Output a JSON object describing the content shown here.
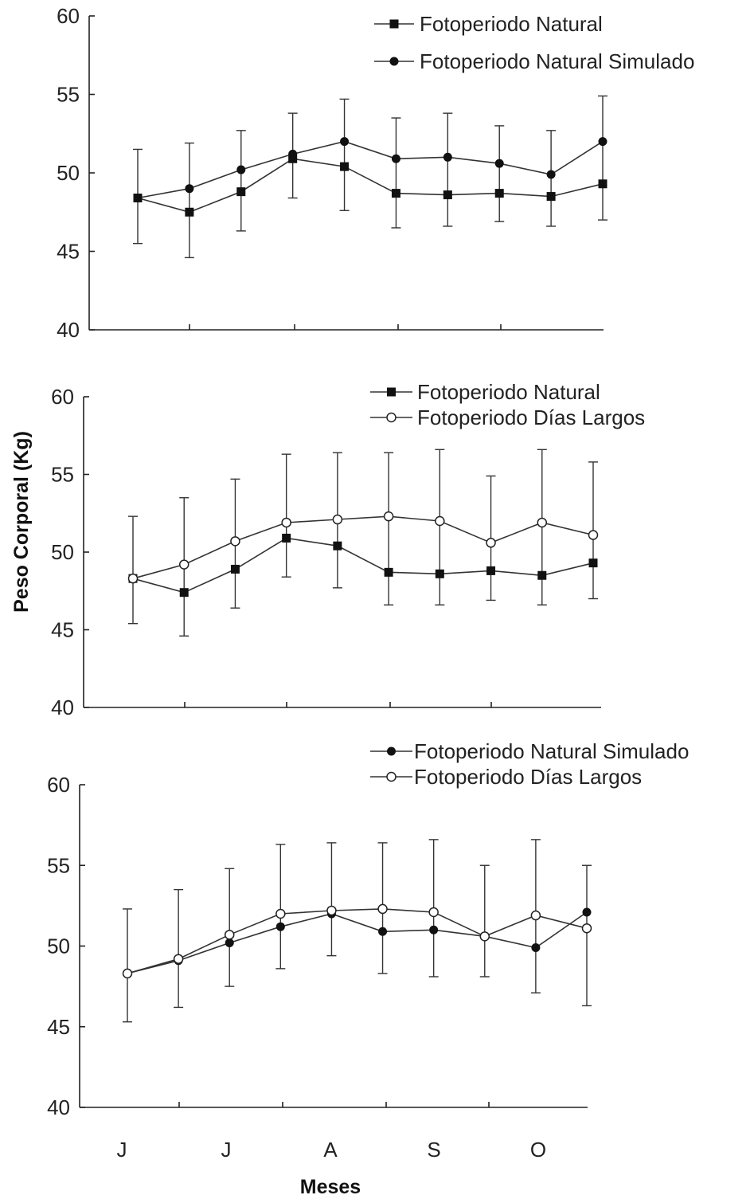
{
  "y_axis_label": "Peso Corporal (Kg)",
  "x_axis_label": "Meses",
  "month_labels": [
    "J",
    "J",
    "A",
    "S",
    "O"
  ],
  "chart_data": [
    {
      "type": "line",
      "ylim": [
        40,
        60
      ],
      "yticks": [
        "40",
        "45",
        "50",
        "55",
        "60"
      ],
      "legend_position": "top-right",
      "series": [
        {
          "name": "Fotoperiodo Natural",
          "marker": "filled-square",
          "values": [
            48.4,
            47.5,
            48.8,
            50.9,
            50.4,
            48.7,
            48.6,
            48.7,
            48.5,
            49.3
          ],
          "error_up": [
            51.5,
            51.9,
            52.7,
            53.8,
            54.7,
            53.5,
            53.8,
            53.0,
            52.7,
            54.9
          ],
          "error_down": [
            45.5,
            44.6,
            46.3,
            48.4,
            47.6,
            46.5,
            46.6,
            46.9,
            46.6,
            47.0
          ]
        },
        {
          "name": "Fotoperiodo Natural Simulado",
          "marker": "filled-circle",
          "values": [
            48.4,
            49.0,
            50.2,
            51.2,
            52.0,
            50.9,
            51.0,
            50.6,
            49.9,
            52.0
          ],
          "error_up": [
            51.5,
            51.9,
            52.7,
            53.8,
            54.7,
            53.5,
            53.8,
            53.0,
            52.7,
            54.9
          ],
          "error_down": [
            45.5,
            44.6,
            46.3,
            48.4,
            47.6,
            46.5,
            46.6,
            46.9,
            46.6,
            47.0
          ]
        }
      ]
    },
    {
      "type": "line",
      "ylim": [
        40,
        60
      ],
      "yticks": [
        "40",
        "45",
        "50",
        "55",
        "60"
      ],
      "legend_position": "top-right",
      "series": [
        {
          "name": "Fotoperiodo Natural",
          "marker": "filled-square",
          "values": [
            48.3,
            47.4,
            48.9,
            50.9,
            50.4,
            48.7,
            48.6,
            48.8,
            48.5,
            49.3
          ],
          "error_up": [
            52.3,
            53.5,
            54.7,
            56.3,
            56.4,
            56.4,
            56.6,
            54.9,
            56.6,
            55.8
          ],
          "error_down": [
            45.4,
            44.6,
            46.4,
            48.4,
            47.7,
            46.6,
            46.6,
            46.9,
            46.6,
            47.0
          ]
        },
        {
          "name": "Fotoperiodo Días Largos",
          "marker": "open-circle",
          "values": [
            48.3,
            49.2,
            50.7,
            51.9,
            52.1,
            52.3,
            52.0,
            50.6,
            51.9,
            51.1
          ],
          "error_up": [
            52.3,
            53.5,
            54.7,
            56.3,
            56.4,
            56.4,
            56.6,
            54.9,
            56.6,
            55.8
          ],
          "error_down": [
            45.4,
            44.6,
            46.4,
            48.4,
            47.7,
            46.6,
            46.6,
            46.9,
            46.6,
            47.0
          ]
        }
      ]
    },
    {
      "type": "line",
      "ylim": [
        40,
        60
      ],
      "yticks": [
        "40",
        "45",
        "50",
        "55",
        "60"
      ],
      "legend_position": "top-right",
      "series": [
        {
          "name": "Fotoperiodo Natural Simulado",
          "marker": "filled-circle",
          "values": [
            48.3,
            49.1,
            50.2,
            51.2,
            52.0,
            50.9,
            51.0,
            50.6,
            49.9,
            52.1
          ],
          "error_up": [
            52.3,
            53.5,
            54.8,
            56.3,
            56.4,
            56.4,
            56.6,
            55.0,
            56.6,
            55.0
          ],
          "error_down": [
            45.3,
            46.2,
            47.5,
            48.6,
            49.4,
            48.3,
            48.1,
            48.1,
            47.1,
            46.3
          ]
        },
        {
          "name": "Fotoperiodo Días Largos",
          "marker": "open-circle",
          "values": [
            48.3,
            49.2,
            50.7,
            52.0,
            52.2,
            52.3,
            52.1,
            50.6,
            51.9,
            51.1
          ],
          "error_up": [
            52.3,
            53.5,
            54.8,
            56.3,
            56.4,
            56.4,
            56.6,
            55.0,
            56.6,
            55.0
          ],
          "error_down": [
            45.3,
            46.2,
            47.5,
            48.6,
            49.4,
            48.3,
            48.1,
            48.1,
            47.1,
            46.3
          ]
        }
      ]
    }
  ]
}
